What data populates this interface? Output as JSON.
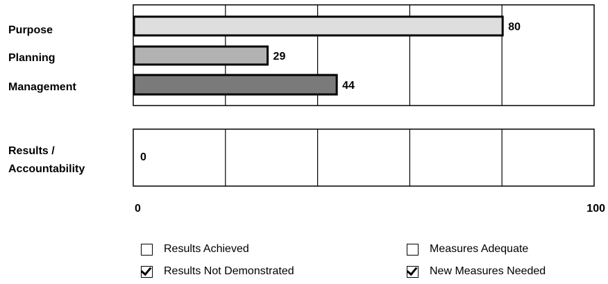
{
  "chart_data": {
    "type": "bar",
    "orientation": "horizontal",
    "panels": [
      {
        "categories": [
          "Purpose",
          "Planning",
          "Management"
        ],
        "values": [
          80,
          29,
          44
        ],
        "colors": [
          "#dedede",
          "#b2b2b2",
          "#7a7a7a"
        ]
      },
      {
        "categories": [
          "Results / Accountability"
        ],
        "category_lines": [
          [
            "Results /",
            "Accountability"
          ]
        ],
        "values": [
          0
        ],
        "colors": [
          "#7a7a7a"
        ]
      }
    ],
    "xlim": [
      0,
      100
    ],
    "x_tick_labels": [
      "0",
      "100"
    ],
    "grid": true,
    "grid_divisions": 5
  },
  "legend": {
    "items": [
      {
        "label": "Results Achieved",
        "checked": false
      },
      {
        "label": "Measures Adequate",
        "checked": false
      },
      {
        "label": "Results Not Demonstrated",
        "checked": true
      },
      {
        "label": "New Measures Needed",
        "checked": true
      }
    ]
  }
}
